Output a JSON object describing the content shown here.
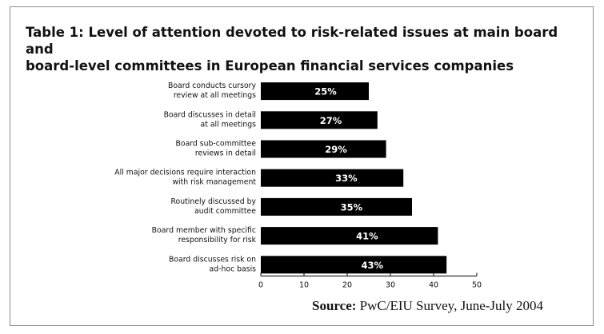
{
  "title_lines": [
    "Table 1: Level of attention devoted to risk-related issues at main board and",
    "board-level committees in European financial services companies"
  ],
  "source": {
    "label": "Source:",
    "text": "PwC/EIU Survey, June-July 2004"
  },
  "colors": {
    "bar": "#000000",
    "bar_label": "#ffffff",
    "axis": "#000000",
    "text": "#111111"
  },
  "chart_data": {
    "type": "bar",
    "orientation": "horizontal",
    "categories": [
      [
        "Board conducts cursory",
        "review at all meetings"
      ],
      [
        "Board discusses in detail",
        "at all meetings"
      ],
      [
        "Board sub-committee",
        "reviews in detail"
      ],
      [
        "All major decisions require interaction",
        "with risk management"
      ],
      [
        "Routinely discussed by",
        "audit committee"
      ],
      [
        "Board member with specific",
        "responsibility for risk"
      ],
      [
        "Board discusses risk on",
        "ad-hoc basis"
      ]
    ],
    "values": [
      25,
      27,
      29,
      33,
      35,
      41,
      43
    ],
    "data_labels": [
      "25%",
      "27%",
      "29%",
      "33%",
      "35%",
      "41%",
      "43%"
    ],
    "xlim": [
      0,
      50
    ],
    "xticks": [
      0,
      10,
      20,
      30,
      40,
      50
    ],
    "xtick_labels": [
      "0",
      "10",
      "20",
      "30",
      "40",
      "50"
    ],
    "grid": false,
    "legend": "none"
  }
}
